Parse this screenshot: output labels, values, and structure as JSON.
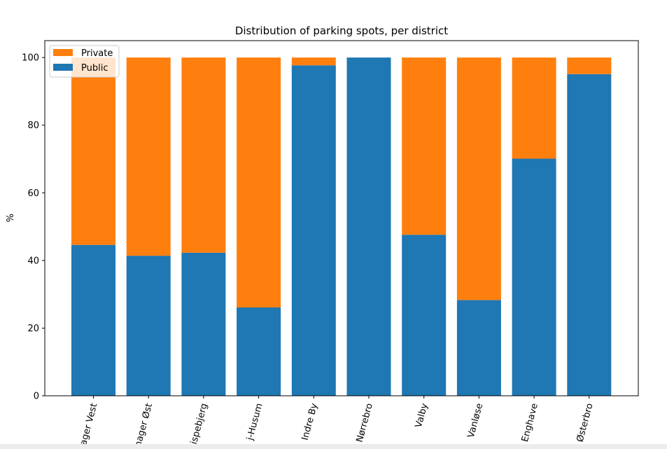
{
  "chart_data": {
    "type": "bar",
    "stacked": true,
    "title": "Distribution of parking spots, per district",
    "xlabel": "",
    "ylabel": "%",
    "ylim": [
      0,
      105
    ],
    "yticks": [
      0,
      20,
      40,
      60,
      80,
      100
    ],
    "grid": false,
    "legend_position": "top-left",
    "categories": [
      "Amager Vest",
      "Amager Øst",
      "Bispebjerg",
      "Brønshøj-Husum",
      "Indre By",
      "Nørrebro",
      "Valby",
      "Vanløse",
      "Vesterbro-Kongens Enghave",
      "Østerbro"
    ],
    "visible_tick_labels": [
      "ager Vest",
      "nager Øst",
      "ispebjerg",
      "j-Husum",
      "Indre By",
      "Nørrebro",
      "Valby",
      "Vanløse",
      "Enghave",
      "Østerbro"
    ],
    "series": [
      {
        "name": "Public",
        "color": "#1f77b4",
        "values": [
          44.6,
          41.4,
          42.3,
          26.1,
          97.7,
          100.0,
          47.6,
          28.3,
          70.1,
          95.1
        ]
      },
      {
        "name": "Private",
        "color": "#ff7f0e",
        "values": [
          55.4,
          58.6,
          57.7,
          73.9,
          2.3,
          0.0,
          52.4,
          71.7,
          29.9,
          4.9
        ]
      }
    ]
  }
}
